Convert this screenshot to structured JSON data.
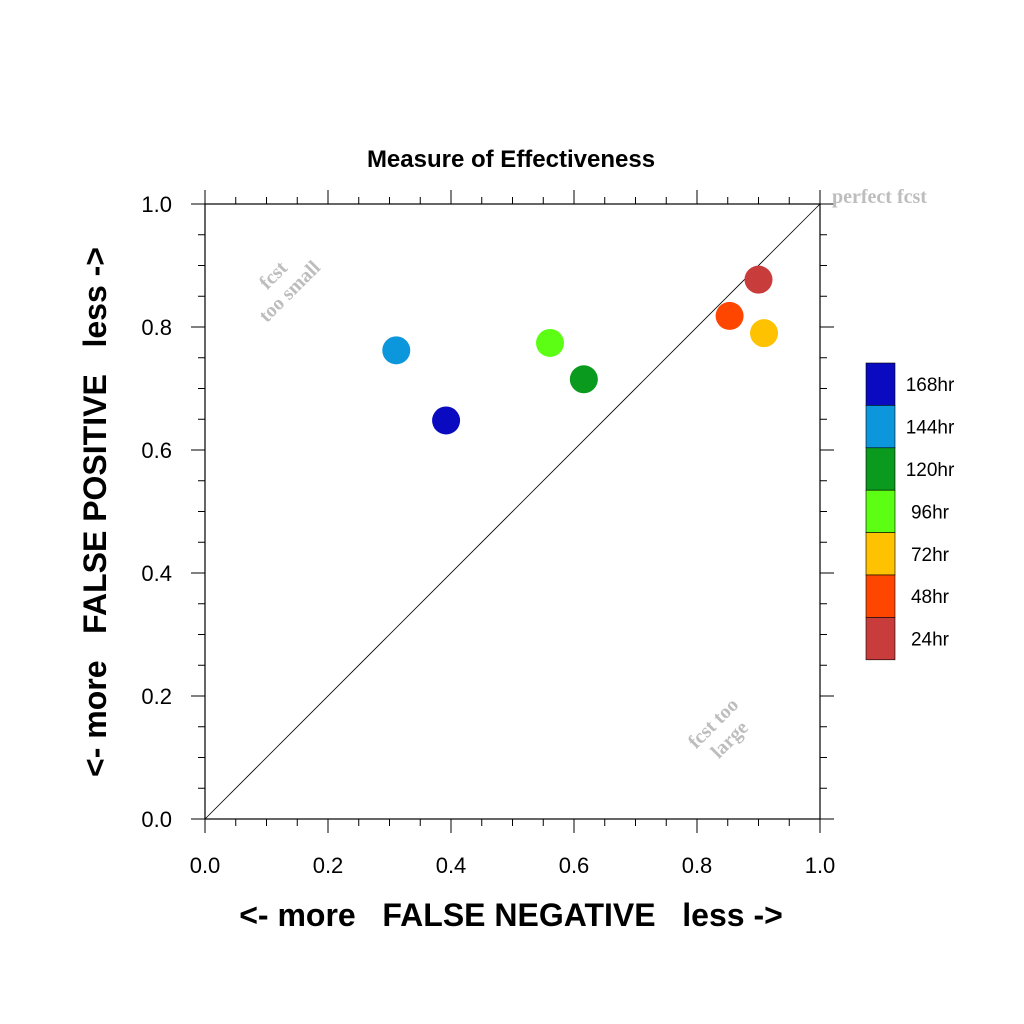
{
  "chart_data": {
    "type": "scatter",
    "title": "Measure of Effectiveness",
    "xlabel": "<- more   FALSE NEGATIVE   less ->",
    "ylabel": "<- more   FALSE POSITIVE   less ->",
    "xlim": [
      0.0,
      1.0
    ],
    "ylim": [
      0.0,
      1.0
    ],
    "xticks": [
      "0.0",
      "0.2",
      "0.4",
      "0.6",
      "0.8",
      "1.0"
    ],
    "yticks": [
      "0.0",
      "0.2",
      "0.4",
      "0.6",
      "0.8",
      "1.0"
    ],
    "grid": false,
    "legend_position": "right",
    "diagonal_line": true,
    "annotations": {
      "perfect": "perfect fcst",
      "too_small": [
        "fcst",
        "too small"
      ],
      "too_large": [
        "fcst too",
        "large"
      ]
    },
    "series": [
      {
        "name": "168hr",
        "color": "#0a0ac0",
        "x": 0.392,
        "y": 0.648
      },
      {
        "name": "144hr",
        "color": "#0c96dc",
        "x": 0.311,
        "y": 0.762
      },
      {
        "name": "120hr",
        "color": "#0a9a1e",
        "x": 0.616,
        "y": 0.715
      },
      {
        "name": "96hr",
        "color": "#5cff14",
        "x": 0.561,
        "y": 0.774
      },
      {
        "name": "72hr",
        "color": "#ffc200",
        "x": 0.909,
        "y": 0.79
      },
      {
        "name": "48hr",
        "color": "#ff4600",
        "x": 0.853,
        "y": 0.818
      },
      {
        "name": "24hr",
        "color": "#c83c3c",
        "x": 0.9,
        "y": 0.877
      }
    ]
  }
}
